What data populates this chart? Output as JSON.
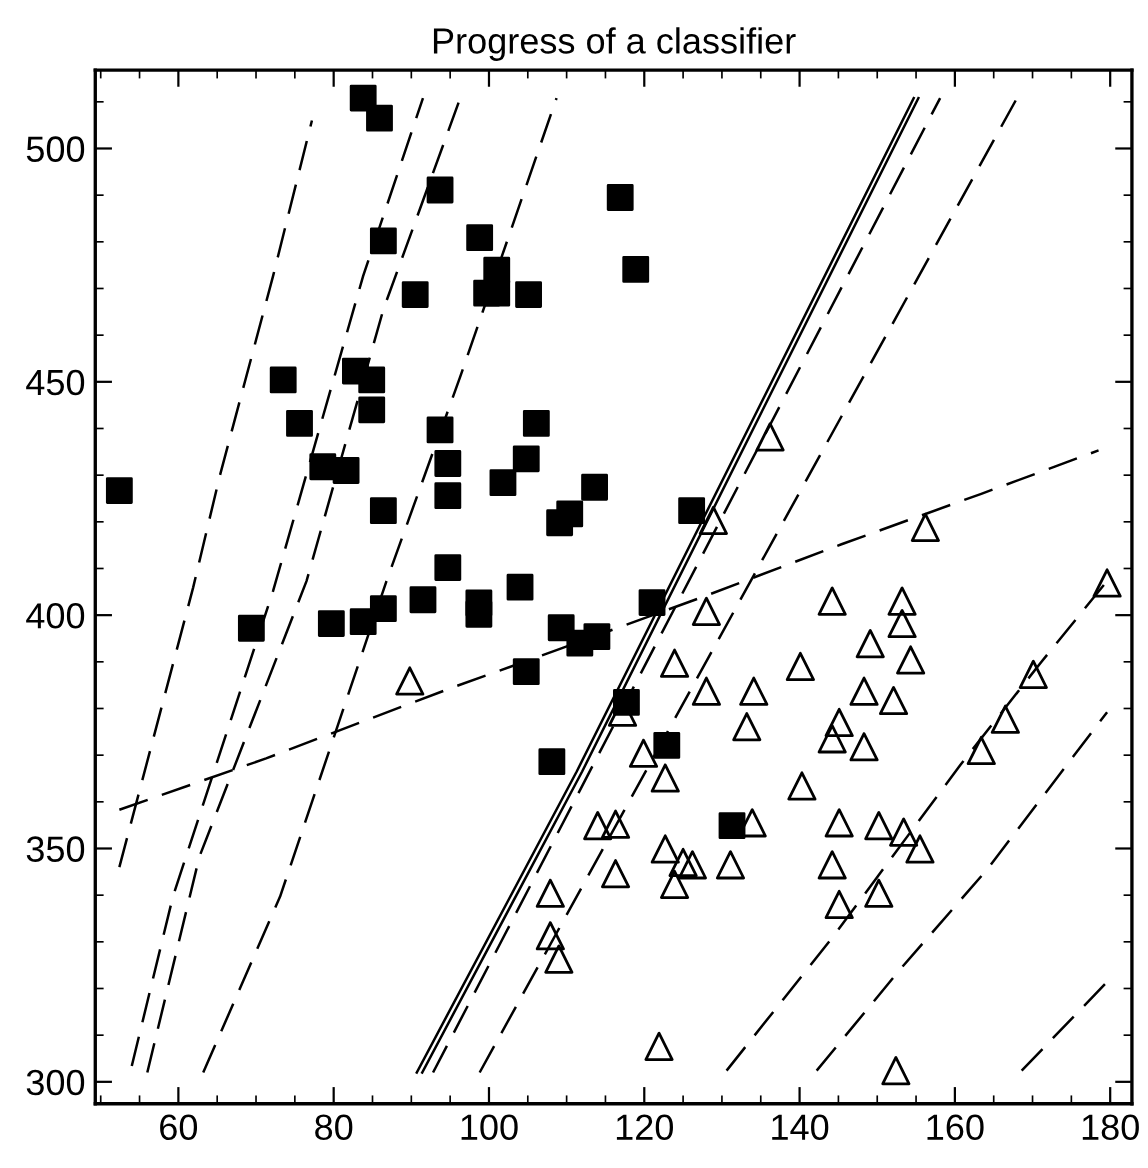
{
  "chart_data": {
    "type": "scatter",
    "title": "Progress of a classifier",
    "xlim": [
      49.3,
      182.8
    ],
    "ylim": [
      295.3,
      516.8
    ],
    "xticks": [
      60,
      80,
      100,
      120,
      140,
      160,
      180
    ],
    "yticks": [
      300,
      350,
      400,
      450,
      500
    ],
    "grid": false,
    "legend": false,
    "series": [
      {
        "marker": "square",
        "color": "#000000",
        "x": [
          83.8,
          85.9,
          93.7,
          86.4,
          98.8,
          101.0,
          90.5,
          99.7,
          101.0,
          105.1,
          73.5,
          82.8,
          84.9,
          84.9,
          75.6,
          93.7,
          106.1,
          78.6,
          81.6,
          94.7,
          104.8,
          101.8,
          94.7,
          86.4,
          109.1,
          110.4,
          52.4,
          94.7,
          91.5,
          98.7,
          98.7,
          104.0,
          69.4,
          79.7,
          83.8,
          86.4,
          109.3,
          111.7,
          113.9,
          121.0,
          117.7,
          122.9,
          131.3,
          104.8,
          108.1,
          116.9,
          118.9,
          113.6,
          126.1
        ],
        "values": [
          510.8,
          506.5,
          491.1,
          480.2,
          480.9,
          473.9,
          468.7,
          469.0,
          469.0,
          468.7,
          450.4,
          452.3,
          450.4,
          444.0,
          441.1,
          439.7,
          441.1,
          431.8,
          431.0,
          432.5,
          433.5,
          428.4,
          425.6,
          422.4,
          419.8,
          421.7,
          426.7,
          410.2,
          403.3,
          402.6,
          400.2,
          406.0,
          397.2,
          398.2,
          398.6,
          401.4,
          397.3,
          394.0,
          395.4,
          402.7,
          381.3,
          372.1,
          354.9,
          387.9,
          368.6,
          489.5,
          474.1,
          427.4,
          422.4
        ]
      },
      {
        "marker": "triangle",
        "color": "#000000",
        "x": [
          136.2,
          128.9,
          156.2,
          179.6,
          144.2,
          153.2,
          128.0,
          153.2,
          89.8,
          107.9,
          107.9,
          109.0,
          149.1,
          154.3,
          140.1,
          123.9,
          128.0,
          134.1,
          148.3,
          152.1,
          170.1,
          166.5,
          163.4,
          145.1,
          144.2,
          148.3,
          133.2,
          119.9,
          122.7,
          140.3,
          114.0,
          116.3,
          133.9,
          145.1,
          150.2,
          153.4,
          155.5,
          122.7,
          125.0,
          126.2,
          131.1,
          144.2,
          116.3,
          123.9,
          145.1,
          150.2,
          117.2,
          121.9,
          152.4
        ],
        "values": [
          438.2,
          420.3,
          418.8,
          406.9,
          403.0,
          403.0,
          400.8,
          398.2,
          385.9,
          340.4,
          331.3,
          326.3,
          393.9,
          390.4,
          389.0,
          389.7,
          383.7,
          383.7,
          383.7,
          381.7,
          387.3,
          377.7,
          371.0,
          377.0,
          373.5,
          371.8,
          376.1,
          370.4,
          365.1,
          363.4,
          354.9,
          355.2,
          355.5,
          355.5,
          354.9,
          353.5,
          349.9,
          349.9,
          347.0,
          346.5,
          346.5,
          346.5,
          344.6,
          342.3,
          338.0,
          340.4,
          379.2,
          307.6,
          302.4
        ]
      },
      {
        "type": "line",
        "line_style": "dashed",
        "marker": "none",
        "color": "#000000",
        "x": [
          52.4,
          61.9,
          65.3,
          72.2,
          77.2
        ],
        "values": [
          346.0,
          405.9,
          429.6,
          472.7,
          506.0
        ]
      },
      {
        "type": "line",
        "line_style": "dashed",
        "marker": "none",
        "color": "#000000",
        "x": [
          54.0,
          59.3,
          72.2,
          83.8,
          91.5
        ],
        "values": [
          303.4,
          339.7,
          405.2,
          472.7,
          510.8
        ]
      },
      {
        "type": "line",
        "line_style": "dashed",
        "marker": "none",
        "color": "#000000",
        "x": [
          56.0,
          62.7,
          76.5,
          86.4,
          96.3
        ],
        "values": [
          302.0,
          348.2,
          407.3,
          465.5,
          510.8
        ]
      },
      {
        "type": "line",
        "line_style": "dashed",
        "marker": "none",
        "color": "#000000",
        "x": [
          63.2,
          73.1,
          86.8,
          96.3,
          108.7
        ],
        "values": [
          302.0,
          339.7,
          407.3,
          451.1,
          510.8
        ]
      },
      {
        "type": "line",
        "line_style": "dashed",
        "marker": "none",
        "color": "#000000",
        "x": [
          52.4,
          71.3,
          83.4,
          95.8,
          108.7,
          127.2,
          145.4,
          163.4,
          178.5
        ],
        "values": [
          358.3,
          369.3,
          377.0,
          384.8,
          392.5,
          403.7,
          415.2,
          426.0,
          435.3
        ]
      },
      {
        "type": "line",
        "line_style": "solid",
        "marker": "none",
        "color": "#000000",
        "x": [
          90.7,
          111.3,
          154.7
        ],
        "values": [
          302.0,
          366.5,
          510.8
        ]
      },
      {
        "type": "line",
        "line_style": "solid",
        "marker": "none",
        "color": "#000000",
        "x": [
          91.4,
          112.0,
          155.3
        ],
        "values": [
          302.0,
          366.5,
          510.8
        ]
      },
      {
        "type": "line",
        "line_style": "dashed",
        "marker": "none",
        "color": "#000000",
        "x": [
          92.8,
          158.1
        ],
        "values": [
          302.0,
          510.8
        ]
      },
      {
        "type": "line",
        "line_style": "dashed",
        "marker": "none",
        "color": "#000000",
        "x": [
          98.8,
          168.0
        ],
        "values": [
          302.0,
          510.8
        ]
      },
      {
        "type": "line",
        "line_style": "dashed",
        "marker": "none",
        "color": "#000000",
        "x": [
          130.6,
          144.4,
          160.7,
          171.0,
          179.6
        ],
        "values": [
          302.4,
          331.3,
          367.9,
          389.7,
          407.3
        ]
      },
      {
        "type": "line",
        "line_style": "dashed",
        "marker": "none",
        "color": "#000000",
        "x": [
          142.2,
          153.0,
          164.1,
          179.6
        ],
        "values": [
          302.4,
          324.2,
          345.4,
          379.2
        ]
      },
      {
        "type": "line",
        "line_style": "dashed",
        "marker": "none",
        "color": "#000000",
        "x": [
          168.6,
          179.6
        ],
        "values": [
          302.4,
          321.4
        ]
      }
    ]
  }
}
